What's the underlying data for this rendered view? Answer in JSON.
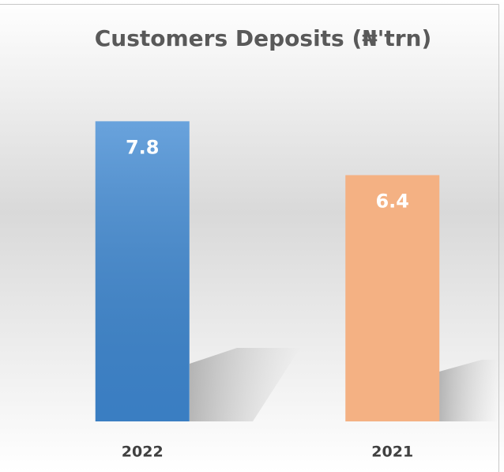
{
  "chart_data": {
    "type": "bar",
    "title": "Customers Deposits (₦'trn)",
    "categories": [
      "2022",
      "2021"
    ],
    "values": [
      7.8,
      6.4
    ],
    "colors": [
      "#3f89d3",
      "#f4b183"
    ],
    "ylim": [
      0,
      9
    ]
  }
}
